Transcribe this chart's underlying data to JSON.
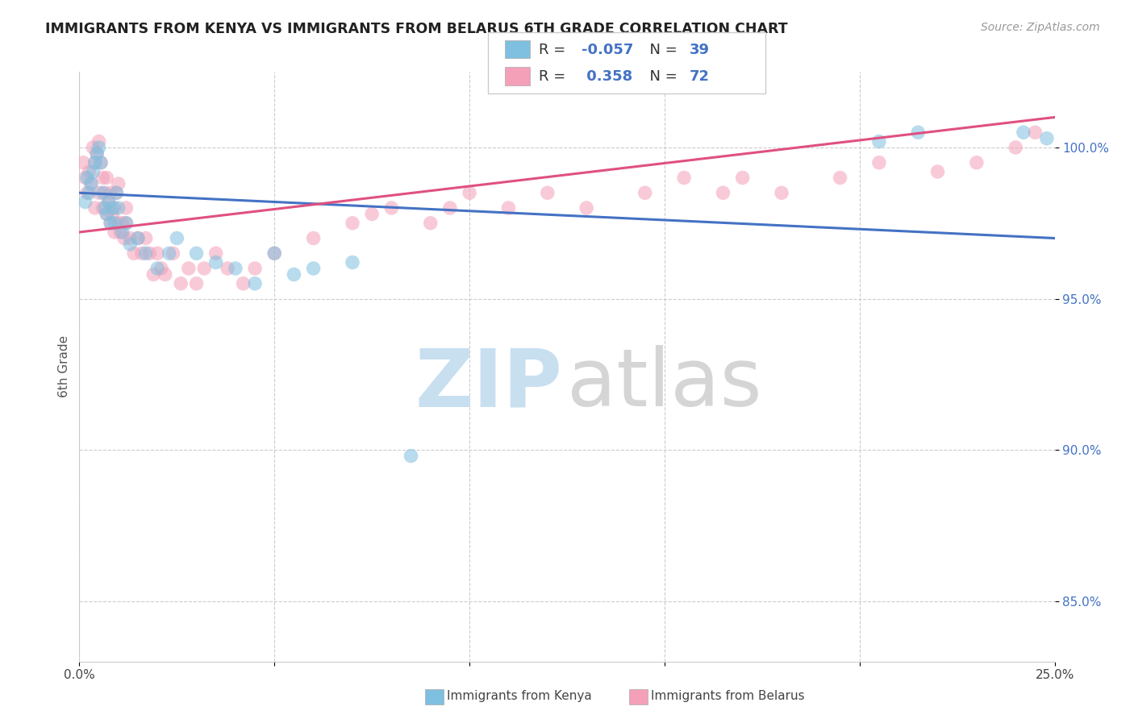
{
  "title": "IMMIGRANTS FROM KENYA VS IMMIGRANTS FROM BELARUS 6TH GRADE CORRELATION CHART",
  "source": "Source: ZipAtlas.com",
  "ylabel": "6th Grade",
  "xlim": [
    0.0,
    25.0
  ],
  "ylim": [
    83.0,
    102.5
  ],
  "yticks": [
    85.0,
    90.0,
    95.0,
    100.0
  ],
  "ytick_labels": [
    "85.0%",
    "90.0%",
    "95.0%",
    "100.0%"
  ],
  "xticks": [
    0.0,
    5.0,
    10.0,
    15.0,
    20.0,
    25.0
  ],
  "legend_r_kenya": "-0.057",
  "legend_n_kenya": "39",
  "legend_r_belarus": "0.358",
  "legend_n_belarus": "72",
  "kenya_color": "#7fbfdf",
  "belarus_color": "#f4a0b8",
  "kenya_line_color": "#4472c4",
  "belarus_line_color": "#e05080",
  "kenya_x": [
    0.15,
    0.2,
    0.25,
    0.3,
    0.35,
    0.4,
    0.45,
    0.5,
    0.55,
    0.6,
    0.65,
    0.7,
    0.75,
    0.8,
    0.85,
    0.9,
    0.95,
    1.0,
    1.1,
    1.2,
    1.3,
    1.5,
    1.7,
    2.0,
    2.3,
    2.5,
    3.0,
    3.5,
    4.0,
    4.5,
    5.0,
    5.5,
    6.0,
    7.0,
    8.5,
    20.5,
    21.5,
    24.2,
    24.8
  ],
  "kenya_y": [
    98.2,
    99.0,
    98.5,
    98.8,
    99.2,
    99.5,
    99.8,
    100.0,
    99.5,
    98.5,
    98.0,
    97.8,
    98.2,
    97.5,
    98.0,
    97.5,
    98.5,
    98.0,
    97.2,
    97.5,
    96.8,
    97.0,
    96.5,
    96.0,
    96.5,
    97.0,
    96.5,
    96.2,
    96.0,
    95.5,
    96.5,
    95.8,
    96.0,
    96.2,
    89.8,
    100.2,
    100.5,
    100.5,
    100.3
  ],
  "belarus_x": [
    0.1,
    0.15,
    0.2,
    0.25,
    0.3,
    0.35,
    0.4,
    0.4,
    0.45,
    0.5,
    0.5,
    0.55,
    0.6,
    0.6,
    0.65,
    0.7,
    0.7,
    0.75,
    0.8,
    0.8,
    0.85,
    0.9,
    0.9,
    0.95,
    1.0,
    1.0,
    1.05,
    1.1,
    1.15,
    1.2,
    1.2,
    1.3,
    1.4,
    1.5,
    1.6,
    1.7,
    1.8,
    1.9,
    2.0,
    2.1,
    2.2,
    2.4,
    2.6,
    2.8,
    3.0,
    3.2,
    3.5,
    3.8,
    4.2,
    4.5,
    5.0,
    6.0,
    7.0,
    7.5,
    8.0,
    9.0,
    9.5,
    10.0,
    11.0,
    12.0,
    13.0,
    14.5,
    15.5,
    16.5,
    17.0,
    18.0,
    19.5,
    20.5,
    22.0,
    23.0,
    24.0,
    24.5
  ],
  "belarus_y": [
    99.5,
    99.0,
    98.5,
    99.2,
    98.8,
    100.0,
    99.5,
    98.0,
    99.8,
    100.2,
    98.5,
    99.5,
    98.0,
    99.0,
    98.5,
    97.8,
    99.0,
    98.2,
    97.5,
    98.5,
    97.8,
    98.0,
    97.2,
    98.5,
    97.5,
    98.8,
    97.2,
    97.5,
    97.0,
    97.5,
    98.0,
    97.0,
    96.5,
    97.0,
    96.5,
    97.0,
    96.5,
    95.8,
    96.5,
    96.0,
    95.8,
    96.5,
    95.5,
    96.0,
    95.5,
    96.0,
    96.5,
    96.0,
    95.5,
    96.0,
    96.5,
    97.0,
    97.5,
    97.8,
    98.0,
    97.5,
    98.0,
    98.5,
    98.0,
    98.5,
    98.0,
    98.5,
    99.0,
    98.5,
    99.0,
    98.5,
    99.0,
    99.5,
    99.2,
    99.5,
    100.0,
    100.5
  ],
  "kenya_trend": [
    98.5,
    97.0
  ],
  "belarus_trend": [
    97.2,
    101.0
  ]
}
